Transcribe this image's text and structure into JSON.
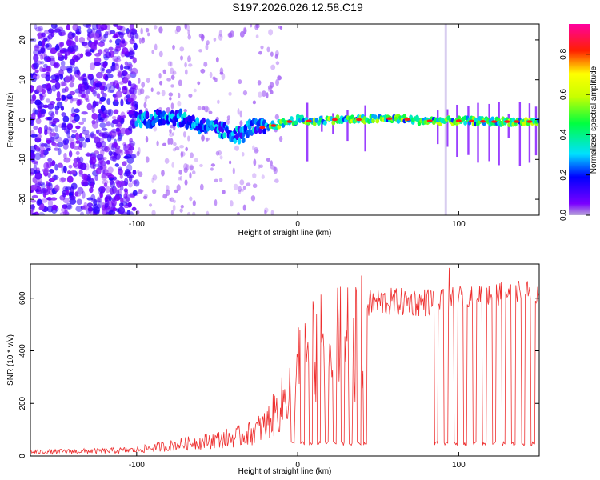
{
  "figure_title": "S197.2026.026.12.58.C19",
  "colors": {
    "snr_line": "#ee3030",
    "axis": "#000000",
    "background": "#ffffff"
  },
  "chart_data": [
    {
      "type": "heatmap",
      "xlabel": "Height of straight line (km)",
      "ylabel": "Frequency (Hz)",
      "xlim": [
        -166,
        150
      ],
      "ylim": [
        -24,
        24
      ],
      "x_ticks": [
        -100,
        0,
        100
      ],
      "y_ticks": [
        -20,
        -10,
        0,
        10,
        20
      ],
      "colorbar": {
        "label": "Normalized spectral amplitude",
        "range": [
          0,
          0.95
        ],
        "ticks": [
          0.0,
          0.2,
          0.4,
          0.6,
          0.8
        ],
        "colormap": "rainbow (violet-blue-cyan-green-yellow-red-magenta)"
      },
      "ridge": {
        "description": "dominant frequency ridge",
        "points": [
          [
            -100,
            0.5
          ],
          [
            -90,
            0.0
          ],
          [
            -80,
            1.0
          ],
          [
            -70,
            0.0
          ],
          [
            -60,
            -1.5
          ],
          [
            -50,
            -2.5
          ],
          [
            -40,
            -3.5
          ],
          [
            -35,
            -4.0
          ],
          [
            -30,
            -2.0
          ],
          [
            -20,
            -2.0
          ],
          [
            -10,
            -1.0
          ],
          [
            0,
            0.0
          ],
          [
            10,
            -0.5
          ],
          [
            20,
            0.0
          ],
          [
            40,
            0.0
          ],
          [
            60,
            0.3
          ],
          [
            80,
            -0.3
          ],
          [
            100,
            -0.3
          ],
          [
            120,
            -0.5
          ],
          [
            150,
            -0.5
          ]
        ]
      },
      "dropouts_km": [
        6,
        15,
        22,
        31,
        42,
        87,
        93,
        99,
        106,
        112,
        119,
        125,
        131,
        138,
        144,
        148
      ]
    },
    {
      "type": "line",
      "xlabel": "Height of straight line (km)",
      "ylabel": "SNR (10 * v/v)",
      "xlim": [
        -166,
        150
      ],
      "ylim": [
        0,
        730
      ],
      "x_ticks": [
        -100,
        0,
        100
      ],
      "y_ticks": [
        0,
        200,
        400,
        600
      ],
      "envelope": {
        "x": [
          -166,
          -120,
          -100,
          -90,
          -80,
          -70,
          -60,
          -50,
          -40,
          -30,
          -20,
          -10,
          -5,
          0,
          5,
          10,
          15,
          20,
          25,
          30,
          40,
          50,
          60,
          70,
          80,
          90,
          95,
          100,
          110,
          120,
          130,
          140,
          150
        ],
        "y": [
          20,
          25,
          30,
          40,
          50,
          60,
          70,
          80,
          90,
          110,
          150,
          250,
          330,
          420,
          470,
          500,
          520,
          540,
          560,
          570,
          580,
          590,
          590,
          590,
          590,
          595,
          600,
          610,
          620,
          620,
          625,
          630,
          630
        ]
      },
      "peak": {
        "x": 94,
        "y": 715
      },
      "dropouts_km": [
        -3,
        3,
        8,
        13,
        18,
        23,
        28,
        33,
        38,
        42,
        86,
        92,
        98,
        104,
        110,
        116,
        122,
        128,
        134,
        140,
        146
      ],
      "dropout_level": 40
    }
  ]
}
